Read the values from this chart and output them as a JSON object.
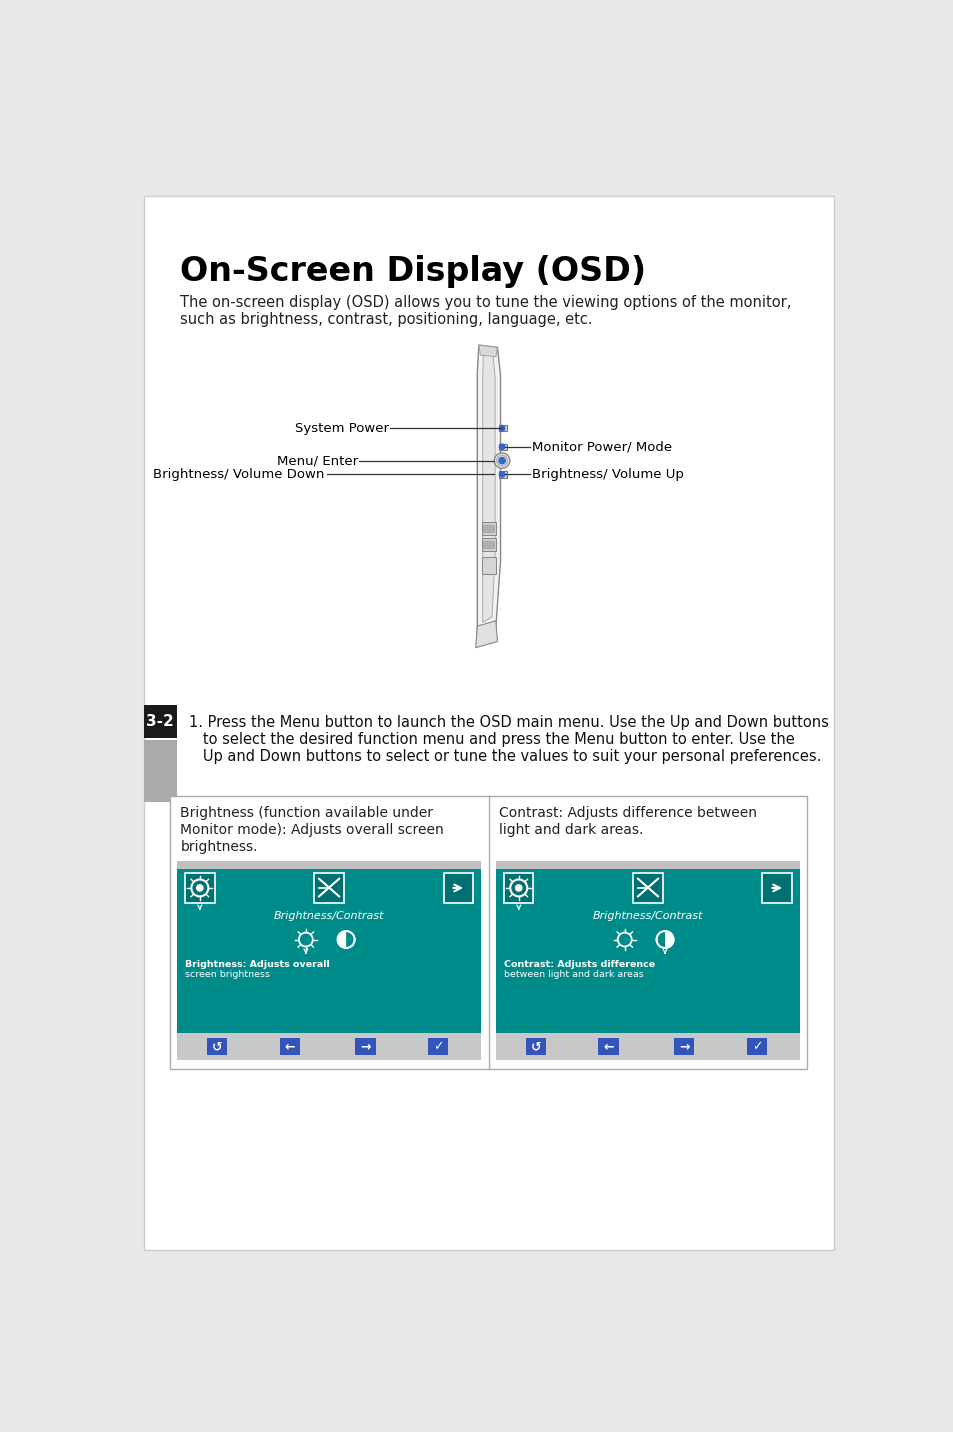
{
  "title": "On-Screen Display (OSD)",
  "intro_text_1": "The on-screen display (OSD) allows you to tune the viewing options of the monitor,",
  "intro_text_2": "such as brightness, contrast, positioning, language, etc.",
  "section_label": "3-2",
  "step1_line1": "1. Press the Menu button to launch the OSD main menu. Use the Up and Down buttons",
  "step1_line2": "   to select the desired function menu and press the Menu button to enter. Use the",
  "step1_line3": "   Up and Down buttons to select or tune the values to suit your personal preferences.",
  "labels": {
    "system_power": "System Power",
    "monitor_power": "Monitor Power/ Mode",
    "menu_enter": "Menu/ Enter",
    "brightness_down": "Brightness/ Volume Down",
    "brightness_up": "Brightness/ Volume Up"
  },
  "cell1_title_1": "Brightness (function available under",
  "cell1_title_2": "Monitor mode): Adjusts overall screen",
  "cell1_title_3": "brightness.",
  "cell2_title_1": "Contrast: Adjusts difference between",
  "cell2_title_2": "light and dark areas.",
  "osd_title": "Brightness/Contrast",
  "osd_text1_1": "Brightness: Adjusts overall",
  "osd_text1_2": "screen brightness",
  "osd_text2_1": "Contrast: Adjusts difference",
  "osd_text2_2": "between light and dark areas",
  "page_bg": "#e8e8e8",
  "content_bg": "#ffffff",
  "teal_color": "#008B8B",
  "teal_dark": "#007070",
  "border_color": "#bbbbbb",
  "section_bg": "#1a1a1a",
  "section_text": "#ffffff",
  "nav_bg": "#c8c8c8",
  "nav_btn_color": "#3355bb",
  "diagram_line_color": "#3366cc",
  "title_font_size": 24,
  "body_font_size": 10.5,
  "label_font_size": 9.5
}
